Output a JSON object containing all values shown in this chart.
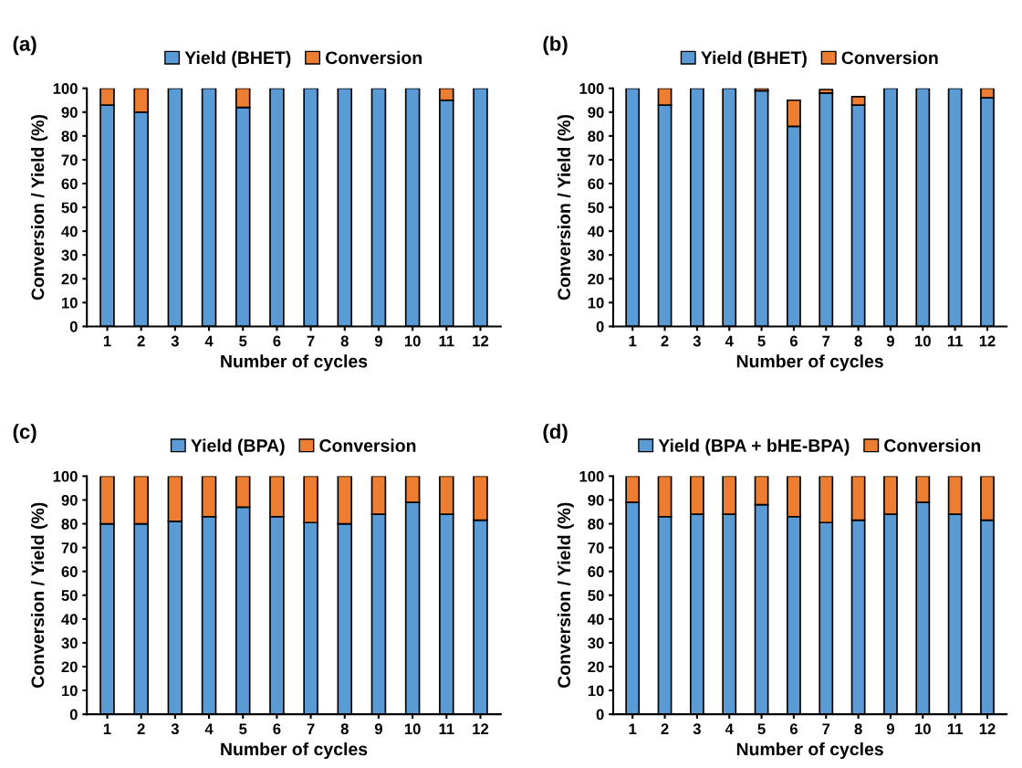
{
  "chart_data": [
    {
      "type": "bar",
      "stacked": true,
      "annotations": [
        "(a)"
      ],
      "xlabel": "Number of cycles",
      "ylabel": "Conversion / Yield (%)",
      "categories": [
        "1",
        "2",
        "3",
        "4",
        "5",
        "6",
        "7",
        "8",
        "9",
        "10",
        "11",
        "12"
      ],
      "ylim": [
        0,
        100
      ],
      "yticks": [
        0,
        10,
        20,
        30,
        40,
        50,
        60,
        70,
        80,
        90,
        100
      ],
      "legend": "top",
      "grid": false,
      "series": [
        {
          "name": "Yield (BHET)",
          "color": "#5b9bd5",
          "values": [
            93,
            90,
            100,
            100,
            92,
            100,
            100,
            100,
            100,
            100,
            95,
            100
          ]
        },
        {
          "name": "Conversion",
          "color": "#ed7d31",
          "values": [
            7,
            10,
            null,
            null,
            8,
            null,
            null,
            null,
            null,
            null,
            5,
            null
          ]
        }
      ]
    },
    {
      "type": "bar",
      "stacked": true,
      "annotations": [
        "(b)"
      ],
      "xlabel": "Number of cycles",
      "ylabel": "Conversion / Yield (%)",
      "categories": [
        "1",
        "2",
        "3",
        "4",
        "5",
        "6",
        "7",
        "8",
        "9",
        "10",
        "11",
        "12"
      ],
      "ylim": [
        0,
        100
      ],
      "yticks": [
        0,
        10,
        20,
        30,
        40,
        50,
        60,
        70,
        80,
        90,
        100
      ],
      "legend": "top",
      "grid": false,
      "series": [
        {
          "name": "Yield (BHET)",
          "color": "#5b9bd5",
          "values": [
            100,
            93,
            100,
            100,
            99,
            84,
            98,
            93,
            100,
            100,
            100,
            96
          ]
        },
        {
          "name": "Conversion",
          "color": "#ed7d31",
          "values": [
            null,
            7,
            null,
            null,
            1,
            11,
            1.5,
            3.5,
            null,
            null,
            null,
            4
          ]
        }
      ]
    },
    {
      "type": "bar",
      "stacked": true,
      "annotations": [
        "(c)"
      ],
      "xlabel": "Number of cycles",
      "ylabel": "Conversion / Yield (%)",
      "categories": [
        "1",
        "2",
        "3",
        "4",
        "5",
        "6",
        "7",
        "8",
        "9",
        "10",
        "11",
        "12"
      ],
      "ylim": [
        0,
        100
      ],
      "yticks": [
        0,
        10,
        20,
        30,
        40,
        50,
        60,
        70,
        80,
        90,
        100
      ],
      "legend": "top",
      "grid": false,
      "series": [
        {
          "name": "Yield (BPA)",
          "color": "#5b9bd5",
          "values": [
            80,
            80,
            81,
            83,
            87,
            83,
            80.5,
            80,
            84,
            89,
            84,
            81.5
          ]
        },
        {
          "name": "Conversion",
          "color": "#ed7d31",
          "values": [
            20,
            20,
            19,
            17,
            13,
            17,
            19.5,
            20,
            16,
            11,
            16,
            18.5
          ]
        }
      ]
    },
    {
      "type": "bar",
      "stacked": true,
      "annotations": [
        "(d)"
      ],
      "xlabel": "Number of cycles",
      "ylabel": "Conversion / Yield (%)",
      "categories": [
        "1",
        "2",
        "3",
        "4",
        "5",
        "6",
        "7",
        "8",
        "9",
        "10",
        "11",
        "12"
      ],
      "ylim": [
        0,
        100
      ],
      "yticks": [
        0,
        10,
        20,
        30,
        40,
        50,
        60,
        70,
        80,
        90,
        100
      ],
      "legend": "top",
      "grid": false,
      "series": [
        {
          "name": "Yield (BPA + bHE-BPA)",
          "color": "#5b9bd5",
          "values": [
            89,
            83,
            84,
            84,
            88,
            83,
            80.5,
            81.5,
            84,
            89,
            84,
            81.5
          ]
        },
        {
          "name": "Conversion",
          "color": "#ed7d31",
          "values": [
            11,
            17,
            16,
            16,
            12,
            17,
            19.5,
            18.5,
            16,
            11,
            16,
            18.5
          ]
        }
      ]
    }
  ]
}
